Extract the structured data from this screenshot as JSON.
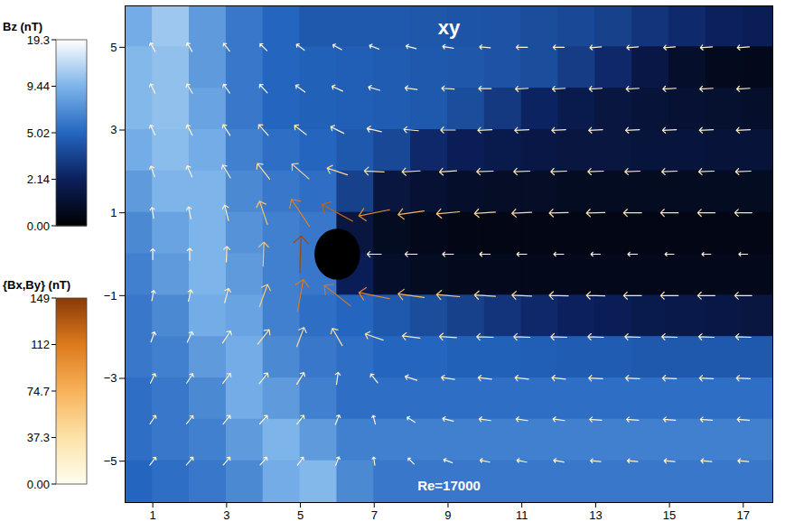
{
  "chart_data": {
    "type": "heatmap_vector",
    "title": "xy",
    "annotations": [
      "Re=17000"
    ],
    "xlim": [
      0.25,
      17.8
    ],
    "ylim": [
      -6,
      6
    ],
    "xticks": [
      1,
      3,
      5,
      7,
      9,
      11,
      13,
      15,
      17
    ],
    "yticks": [
      -5,
      -3,
      -1,
      1,
      3,
      5
    ],
    "legend": "left",
    "heatmap": {
      "x": [
        0.5,
        1.5,
        2.5,
        3.5,
        4.5,
        5.5,
        6.5,
        7.5,
        8.5,
        9.5,
        10.5,
        11.5,
        12.5,
        13.5,
        14.5,
        15.5,
        16.5,
        17.5
      ],
      "y": [
        5.5,
        4.5,
        3.5,
        2.5,
        1.5,
        0.5,
        -0.5,
        -1.5,
        -2.5,
        -3.5,
        -4.5,
        -5.5
      ],
      "values": [
        [
          9,
          12,
          8,
          6,
          5,
          4.5,
          4.5,
          4.5,
          4.4,
          4.3,
          4.2,
          4,
          3.8,
          3.5,
          3,
          2.6,
          2.2,
          2
        ],
        [
          10,
          11,
          8,
          6,
          5,
          4.8,
          4.7,
          4.6,
          4.5,
          4.4,
          4.2,
          4,
          3.3,
          2.5,
          1.6,
          1,
          0.7,
          0.6
        ],
        [
          10,
          11,
          8.5,
          6,
          5,
          4.8,
          4.7,
          4.6,
          4.5,
          4,
          3.2,
          2.3,
          1.8,
          1.5,
          1.3,
          1.2,
          1.1,
          1
        ],
        [
          9,
          10.5,
          9,
          6.5,
          5.5,
          5,
          4.5,
          3.8,
          2.5,
          2,
          1.8,
          1.6,
          1.5,
          1.5,
          1.4,
          1.4,
          1.3,
          1.3
        ],
        [
          8,
          9.5,
          9.5,
          7,
          6,
          5.5,
          3.5,
          1.5,
          1.2,
          1,
          0.9,
          0.9,
          0.8,
          0.8,
          0.8,
          0.8,
          0.8,
          0.8
        ],
        [
          7,
          8.5,
          9.5,
          7.5,
          6.5,
          6,
          1.5,
          0.8,
          0.6,
          0.5,
          0.5,
          0.5,
          0.5,
          0.5,
          0.5,
          0.5,
          0.5,
          0.5
        ],
        [
          6.5,
          8,
          9.5,
          8,
          6.5,
          6,
          2,
          1,
          0.8,
          0.7,
          0.7,
          0.6,
          0.6,
          0.6,
          0.6,
          0.6,
          0.6,
          0.6
        ],
        [
          6,
          7,
          9,
          8.5,
          6.5,
          5.5,
          5,
          4.5,
          4,
          3.5,
          3,
          2.5,
          2.2,
          2,
          1.8,
          1.7,
          1.6,
          1.5
        ],
        [
          6,
          6.5,
          8,
          9,
          7,
          6,
          5.5,
          5,
          5,
          4.8,
          4.8,
          4.7,
          4.6,
          4.6,
          4.5,
          4.5,
          4.5,
          4.5
        ],
        [
          5.5,
          6,
          7,
          9,
          8,
          6.5,
          5.5,
          5.5,
          5.5,
          5.5,
          5.5,
          5.5,
          5.5,
          5.5,
          5.5,
          5.5,
          5.5,
          5.5
        ],
        [
          5.5,
          6,
          6.5,
          8,
          9.5,
          8,
          6.5,
          6.5,
          6.5,
          6.5,
          6.5,
          6.5,
          6.5,
          6.5,
          6.5,
          6.5,
          6.5,
          6.5
        ],
        [
          5,
          5.5,
          6,
          7,
          9,
          10,
          7,
          6,
          6,
          6,
          6,
          6,
          6,
          6,
          6,
          6,
          6,
          6
        ]
      ],
      "colorbar": {
        "label": "Bz (nT)",
        "range": [
          0,
          19.3
        ],
        "ticks": [
          {
            "value": 0,
            "label": "0.00"
          },
          2.14,
          5.02,
          9.44,
          19.3
        ]
      }
    },
    "vectors": {
      "x": [
        1,
        2,
        3,
        4,
        5,
        6,
        7,
        8,
        9,
        10,
        11,
        12,
        13,
        14,
        15,
        16,
        17
      ],
      "y": [
        5,
        4,
        3,
        2,
        1,
        0,
        -1,
        -2,
        -3,
        -4,
        -5
      ],
      "bx": [
        [
          -5,
          -5,
          -6,
          -7,
          -8,
          -9,
          -10,
          -11,
          -12,
          -12,
          -13,
          -13,
          -14,
          -14,
          -14,
          -15,
          -15
        ],
        [
          -5,
          -6,
          -7,
          -9,
          -11,
          -13,
          -14,
          -15,
          -16,
          -16,
          -17,
          -17,
          -17,
          -17,
          -18,
          -18,
          -18
        ],
        [
          -5,
          -6,
          -9,
          -14,
          -18,
          -20,
          -22,
          -22,
          -22,
          -21,
          -21,
          -20,
          -20,
          -20,
          -20,
          -20,
          -20
        ],
        [
          -4,
          -6,
          -12,
          -25,
          -40,
          -45,
          -40,
          -34,
          -30,
          -28,
          -27,
          -26,
          -25,
          -24,
          -24,
          -24,
          -24
        ],
        [
          -2,
          -3,
          -6,
          -20,
          -60,
          -110,
          -100,
          -70,
          -55,
          -45,
          -40,
          -37,
          -35,
          -33,
          -32,
          -31,
          -30
        ],
        [
          0,
          0,
          1,
          2,
          5,
          null,
          -20,
          -15,
          -12,
          -11,
          -10,
          -10,
          -9,
          -9,
          -8,
          -8,
          -8
        ],
        [
          2,
          3,
          6,
          20,
          20,
          -90,
          -100,
          -70,
          -55,
          -45,
          -40,
          -37,
          -35,
          -33,
          -32,
          -31,
          -30
        ],
        [
          4,
          6,
          12,
          22,
          15,
          -20,
          -35,
          -32,
          -30,
          -28,
          -27,
          -26,
          -25,
          -24,
          -24,
          -24,
          -24
        ],
        [
          5,
          7,
          10,
          12,
          10,
          2,
          -8,
          -15,
          -18,
          -19,
          -19,
          -19,
          -20,
          -20,
          -20,
          -20,
          -20
        ],
        [
          6,
          7,
          8,
          9,
          8,
          4,
          -2,
          -8,
          -12,
          -14,
          -14,
          -14,
          -15,
          -15,
          -15,
          -15,
          -15
        ],
        [
          6,
          7,
          7,
          7,
          6,
          3,
          -1,
          -5,
          -8,
          -10,
          -10,
          -11,
          -11,
          -11,
          -12,
          -12,
          -12
        ]
      ],
      "by": [
        [
          9,
          9,
          8,
          7,
          6,
          5,
          4,
          3,
          2,
          1,
          0,
          0,
          -1,
          -1,
          -1,
          -1,
          -1
        ],
        [
          10,
          10,
          10,
          10,
          8,
          6,
          4,
          2,
          1,
          0,
          -1,
          -1,
          -1,
          -1,
          -1,
          -1,
          -1
        ],
        [
          11,
          12,
          14,
          16,
          14,
          10,
          5,
          2,
          0,
          -1,
          -1,
          -1,
          -1,
          -1,
          -1,
          -1,
          -1
        ],
        [
          12,
          14,
          20,
          32,
          35,
          15,
          2,
          -2,
          -2,
          -1,
          -1,
          -1,
          -1,
          -1,
          -1,
          -1,
          -1
        ],
        [
          12,
          15,
          25,
          60,
          90,
          60,
          -20,
          -10,
          -5,
          -3,
          -2,
          -1,
          -1,
          0,
          0,
          0,
          0
        ],
        [
          12,
          15,
          25,
          60,
          140,
          null,
          0,
          0,
          0,
          0,
          0,
          0,
          0,
          0,
          0,
          0,
          0
        ],
        [
          11,
          14,
          22,
          55,
          110,
          70,
          20,
          10,
          5,
          3,
          2,
          1,
          1,
          0,
          0,
          0,
          0
        ],
        [
          11,
          13,
          18,
          28,
          40,
          35,
          12,
          4,
          2,
          1,
          1,
          1,
          1,
          1,
          1,
          1,
          1
        ],
        [
          10,
          11,
          13,
          15,
          16,
          15,
          10,
          5,
          3,
          2,
          2,
          2,
          1,
          1,
          1,
          1,
          1
        ],
        [
          9,
          9,
          10,
          10,
          10,
          10,
          8,
          5,
          3,
          2,
          2,
          2,
          1,
          1,
          1,
          1,
          1
        ],
        [
          8,
          8,
          8,
          8,
          8,
          8,
          7,
          5,
          3,
          2,
          2,
          2,
          1,
          1,
          1,
          1,
          1
        ]
      ],
      "colorbar": {
        "label": "{Bx,By} (nT)",
        "range": [
          0,
          149
        ],
        "ticks": [
          {
            "value": 0,
            "label": "0.00"
          },
          37.3,
          74.7,
          112,
          149
        ]
      }
    },
    "earth": {
      "x": 6,
      "y": 0,
      "r": 0.6
    }
  }
}
